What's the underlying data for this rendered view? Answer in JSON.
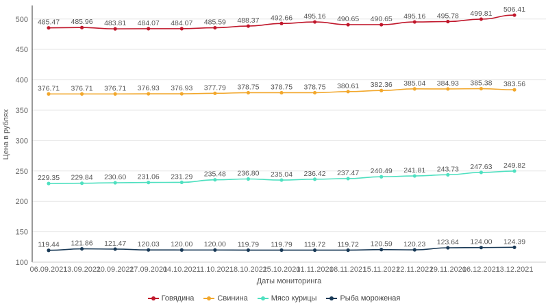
{
  "chart_data": {
    "type": "line",
    "xlabel": "Даты мониторинга",
    "ylabel": "Цена в рублях",
    "ylim": [
      100,
      520
    ],
    "yticks": [
      100,
      150,
      200,
      250,
      300,
      350,
      400,
      450,
      500
    ],
    "grid": "horizontal",
    "legend_position": "bottom-center",
    "categories": [
      "06.09.2021",
      "13.09.2021",
      "20.09.2021",
      "27.09.2021",
      "04.10.2021",
      "11.10.2021",
      "18.10.2021",
      "25.10.2021",
      "01.11.2021",
      "08.11.2021",
      "15.11.2021",
      "22.11.2021",
      "29.11.2021",
      "06.12.2021",
      "13.12.2021"
    ],
    "series": [
      {
        "name": "Говядина",
        "color": "#c0172b",
        "values": [
          485.47,
          485.96,
          483.81,
          484.07,
          484.07,
          485.59,
          488.37,
          492.66,
          495.16,
          490.65,
          490.65,
          495.16,
          495.78,
          499.81,
          506.41
        ],
        "labels": [
          "485.47",
          "485.96",
          "483.81",
          "484.07",
          "484.07",
          "485.59",
          "488.37",
          "492.66",
          "495.16",
          "490.65",
          "490.65",
          "495.16",
          "495.78",
          "499.81",
          "506.41"
        ]
      },
      {
        "name": "Свинина",
        "color": "#f2a72b",
        "values": [
          376.71,
          376.71,
          376.71,
          376.93,
          376.93,
          377.79,
          378.75,
          378.75,
          378.75,
          380.61,
          382.36,
          385.04,
          384.93,
          385.38,
          383.56
        ],
        "labels": [
          "376.71",
          "376.71",
          "376.71",
          "376.93",
          "376.93",
          "377.79",
          "378.75",
          "378.75",
          "378.75",
          "380.61",
          "382.36",
          "385.04",
          "384.93",
          "385.38",
          "383.56"
        ]
      },
      {
        "name": "Мясо курицы",
        "color": "#4fe0c0",
        "values": [
          229.35,
          229.84,
          230.6,
          231.06,
          231.29,
          235.48,
          236.8,
          235.04,
          236.42,
          237.47,
          240.49,
          241.81,
          243.73,
          247.63,
          249.82
        ],
        "labels": [
          "229.35",
          "229.84",
          "230.60",
          "231.06",
          "231.29",
          "235.48",
          "236.80",
          "235.04",
          "236.42",
          "237.47",
          "240.49",
          "241.81",
          "243.73",
          "247.63",
          "249.82"
        ]
      },
      {
        "name": "Рыба мороженая",
        "color": "#1a3a57",
        "values": [
          119.44,
          121.86,
          121.47,
          120.03,
          120.0,
          120.0,
          119.79,
          119.79,
          119.72,
          119.72,
          120.59,
          120.23,
          123.64,
          124.0,
          124.39
        ],
        "labels": [
          "119.44",
          "121.86",
          "121.47",
          "120.03",
          "120.00",
          "120.00",
          "119.79",
          "119.79",
          "119.72",
          "119.72",
          "120.59",
          "120.23",
          "123.64",
          "124.00",
          "124.39"
        ]
      }
    ]
  }
}
